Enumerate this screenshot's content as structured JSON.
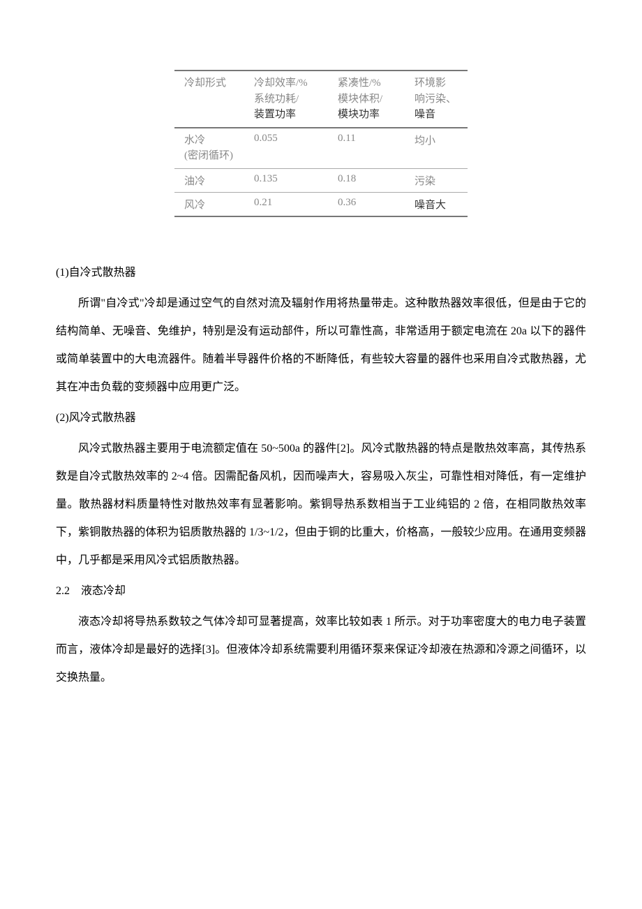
{
  "table": {
    "headers": {
      "col1_l1": "冷却形式",
      "col2_l1": "冷却效率/%",
      "col2_l2": "系统功耗/",
      "col2_l3": "装置功率",
      "col3_l1": "紧凑性/%",
      "col3_l2": "模块体积/",
      "col3_l3": "模块功率",
      "col4_l1": "环境影",
      "col4_l2": "响污染、",
      "col4_l3": "噪音"
    },
    "rows": [
      {
        "c1_l1": "水冷",
        "c1_l2": "(密闭循环)",
        "c2": "0.055",
        "c3": "0.11",
        "c4": "均小"
      },
      {
        "c1_l1": "油冷",
        "c1_l2": "",
        "c2": "0.135",
        "c3": "0.18",
        "c4": "污染"
      },
      {
        "c1_l1": "风冷",
        "c1_l2": "",
        "c2": "0.21",
        "c3": "0.36",
        "c4": "噪音大"
      }
    ],
    "colors": {
      "light_text": "#888888",
      "dark_text": "#333333",
      "border": "#777777"
    }
  },
  "sections": {
    "s1_heading": "(1)自冷式散热器",
    "s1_p1": "所谓\"自冷式\"冷却是通过空气的自然对流及辐射作用将热量带走。这种散热器效率很低，但是由于它的结构简单、无噪音、免维护，特别是没有运动部件，所以可靠性高，非常适用于额定电流在 20a 以下的器件或简单装置中的大电流器件。随着半导器件价格的不断降低，有些较大容量的器件也采用自冷式散热器，尤其在冲击负载的变频器中应用更广泛。",
    "s2_heading": "(2)风冷式散热器",
    "s2_p1": "风冷式散热器主要用于电流额定值在 50~500a 的器件[2]。风冷式散热器的特点是散热效率高，其传热系数是自冷式散热效率的 2~4 倍。因需配备风机，因而噪声大，容易吸入灰尘，可靠性相对降低，有一定维护量。散热器材料质量特性对散热效率有显著影响。紫铜导热系数相当于工业纯铝的 2 倍，在相同散热效率下，紫铜散热器的体积为铝质散热器的 1/3~1/2，但由于铜的比重大，价格高，一般较少应用。在通用变频器中，几乎都是采用风冷式铝质散热器。",
    "s3_heading": "2.2　液态冷却",
    "s3_p1": "液态冷却将导热系数较之气体冷却可显著提高，效率比较如表 1 所示。对于功率密度大的电力电子装置而言，液体冷却是最好的选择[3]。但液体冷却系统需要利用循环泵来保证冷却液在热源和冷源之间循环，以交换热量。"
  }
}
